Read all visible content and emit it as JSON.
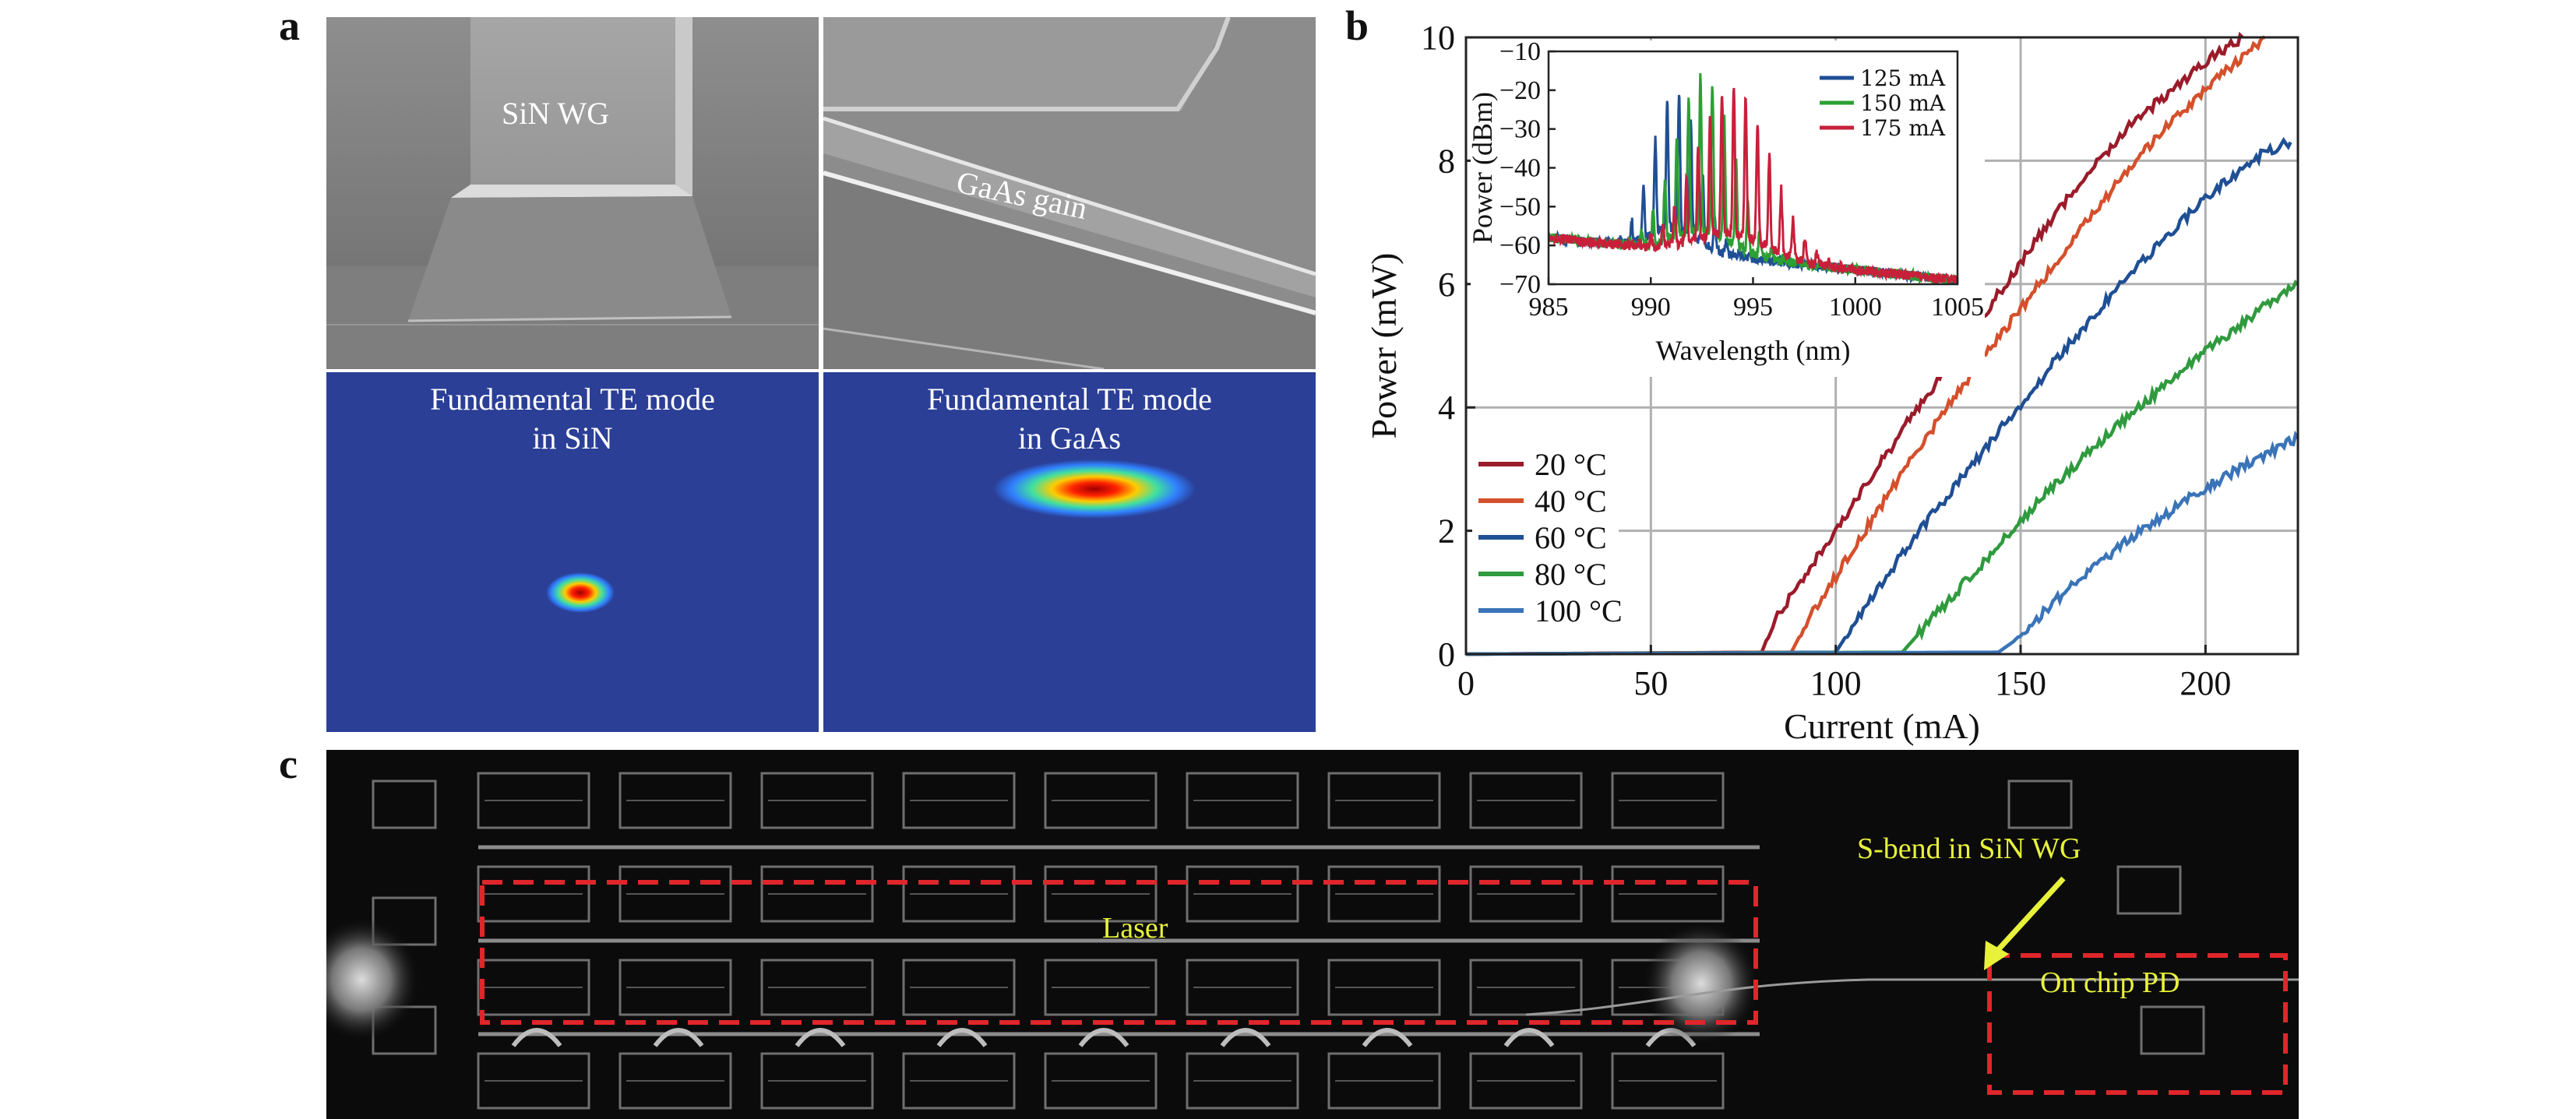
{
  "panels": {
    "a": {
      "label": "a",
      "sem_left_label": "SiN WG",
      "sem_right_label": "GaAs gain",
      "mode_left": [
        "Fundamental TE mode",
        "in SiN"
      ],
      "mode_right": [
        "Fundamental TE mode",
        "in GaAs"
      ]
    },
    "b": {
      "label": "b"
    },
    "c": {
      "label": "c",
      "laser_label": "Laser",
      "sbend_label": "S-bend in SiN WG",
      "pd_label": "On chip PD"
    }
  },
  "colors": {
    "c20": "#9b1b2a",
    "c40": "#d4502c",
    "c60": "#1f4f94",
    "c80": "#2f9a3e",
    "c100": "#3a74b8",
    "i125": "#1f4f94",
    "i150": "#2ca033",
    "i175": "#c8203a",
    "mode_bg": "#2b3f97",
    "chip_annotation": "#e8f23a",
    "box_dashed": "#e0262a"
  },
  "chart_data": [
    {
      "type": "line",
      "xlabel": "Current (mA)",
      "ylabel": "Power (mW)",
      "xlim": [
        0,
        225
      ],
      "ylim": [
        0,
        10
      ],
      "xticks": [
        0,
        50,
        100,
        150,
        200
      ],
      "yticks": [
        0,
        2,
        4,
        6,
        8,
        10
      ],
      "grid": true,
      "legend_position": "lower-left",
      "series": [
        {
          "name": "20 °C",
          "color_key": "c20",
          "points": [
            [
              0,
              0
            ],
            [
              80,
              0.03
            ],
            [
              83,
              0.5
            ],
            [
              100,
              2.0
            ],
            [
              120,
              3.8
            ],
            [
              140,
              5.5
            ],
            [
              160,
              7.2
            ],
            [
              180,
              8.6
            ],
            [
              200,
              9.6
            ],
            [
              210,
              10
            ]
          ]
        },
        {
          "name": "40 °C",
          "color_key": "c40",
          "points": [
            [
              0,
              0
            ],
            [
              88,
              0.03
            ],
            [
              92,
              0.5
            ],
            [
              110,
              2.2
            ],
            [
              130,
              4.0
            ],
            [
              150,
              5.6
            ],
            [
              170,
              7.2
            ],
            [
              190,
              8.6
            ],
            [
              210,
              9.7
            ],
            [
              216,
              10
            ]
          ]
        },
        {
          "name": "60 °C",
          "color_key": "c60",
          "points": [
            [
              0,
              0
            ],
            [
              100,
              0.03
            ],
            [
              105,
              0.5
            ],
            [
              120,
              1.8
            ],
            [
              140,
              3.3
            ],
            [
              160,
              4.8
            ],
            [
              180,
              6.2
            ],
            [
              200,
              7.4
            ],
            [
              215,
              8.1
            ],
            [
              223,
              8.3
            ]
          ]
        },
        {
          "name": "80 °C",
          "color_key": "c80",
          "points": [
            [
              0,
              0
            ],
            [
              118,
              0.03
            ],
            [
              122,
              0.3
            ],
            [
              140,
              1.5
            ],
            [
              160,
              2.8
            ],
            [
              180,
              3.9
            ],
            [
              200,
              4.9
            ],
            [
              215,
              5.6
            ],
            [
              225,
              6.0
            ]
          ]
        },
        {
          "name": "100 °C",
          "color_key": "c100",
          "points": [
            [
              0,
              0
            ],
            [
              144,
              0.03
            ],
            [
              148,
              0.2
            ],
            [
              160,
              0.9
            ],
            [
              180,
              1.9
            ],
            [
              200,
              2.7
            ],
            [
              215,
              3.2
            ],
            [
              225,
              3.5
            ]
          ]
        }
      ]
    },
    {
      "type": "line",
      "xlabel": "Wavelength (nm)",
      "ylabel": "Power (dBm)",
      "xlim": [
        985,
        1005
      ],
      "ylim": [
        -70,
        -10
      ],
      "xticks": [
        985,
        990,
        995,
        1000,
        1005
      ],
      "yticks": [
        -10,
        -20,
        -30,
        -40,
        -50,
        -60,
        -70
      ],
      "grid": false,
      "legend_position": "top-right",
      "series": [
        {
          "name": "125 mA",
          "color_key": "i125",
          "center": 991.2,
          "width": 1.6,
          "peak": -20
        },
        {
          "name": "150 mA",
          "color_key": "i150",
          "center": 992.6,
          "width": 2.0,
          "peak": -16
        },
        {
          "name": "175 mA",
          "color_key": "i175",
          "center": 994.0,
          "width": 2.5,
          "peak": -18
        }
      ]
    }
  ]
}
